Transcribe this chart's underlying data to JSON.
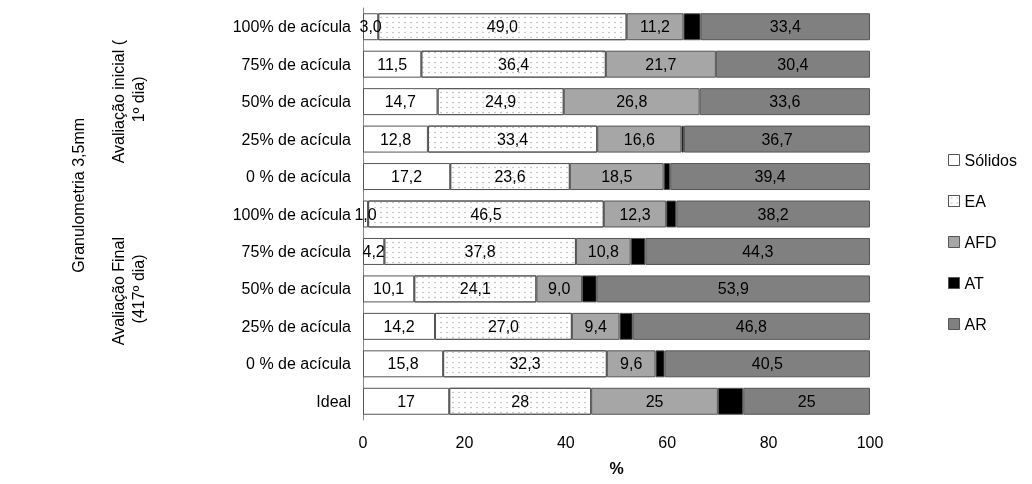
{
  "chart_data": {
    "type": "bar",
    "orientation": "horizontal",
    "stacked": true,
    "xlabel": "%",
    "categories": [
      "100% de acícula",
      "75% de acícula",
      "50% de acícula",
      "25% de acícula",
      "0 % de acícula",
      "100% de acícula",
      "75% de acícula",
      "50% de acícula",
      "25% de acícula",
      "0 % de acícula",
      "Ideal"
    ],
    "series": [
      {
        "name": "Sólidos",
        "color": "#ffffff",
        "values": [
          3.0,
          11.5,
          14.7,
          12.8,
          17.2,
          1.0,
          4.2,
          10.1,
          14.2,
          15.8,
          17
        ],
        "value_labels": [
          "3,0",
          "11,5",
          "14,7",
          "12,8",
          "17,2",
          "1,0",
          "4,2",
          "10,1",
          "14,2",
          "15,8",
          "17"
        ]
      },
      {
        "name": "EA",
        "color": "#ffffff",
        "values": [
          49.0,
          36.4,
          24.9,
          33.4,
          23.6,
          46.5,
          37.8,
          24.1,
          27.0,
          32.3,
          28
        ],
        "value_labels": [
          "49,0",
          "36,4",
          "24,9",
          "33,4",
          "23,6",
          "46,5",
          "37,8",
          "24,1",
          "27,0",
          "32,3",
          "28"
        ]
      },
      {
        "name": "AFD",
        "color": "#a6a6a6",
        "values": [
          11.2,
          21.7,
          26.8,
          16.6,
          18.5,
          12.3,
          10.8,
          9.0,
          9.4,
          9.6,
          25
        ],
        "value_labels": [
          "11,2",
          "21,7",
          "26,8",
          "16,6",
          "18,5",
          "12,3",
          "10,8",
          "9,0",
          "9,4",
          "9,6",
          "25"
        ]
      },
      {
        "name": "AT",
        "color": "#000000",
        "values": [
          3.4,
          0,
          0,
          0.5,
          1.3,
          2.0,
          2.9,
          2.9,
          2.6,
          1.8,
          5
        ]
      },
      {
        "name": "AR",
        "color": "#808080",
        "values": [
          33.4,
          30.4,
          33.6,
          36.7,
          39.4,
          38.2,
          44.3,
          53.9,
          46.8,
          40.5,
          25
        ],
        "value_labels": [
          "33,4",
          "30,4",
          "33,6",
          "36,7",
          "39,4",
          "38,2",
          "44,3",
          "53,9",
          "46,8",
          "40,5",
          "25"
        ]
      }
    ],
    "xlim": [
      0,
      100
    ],
    "xticks": [
      0,
      20,
      40,
      60,
      80,
      100
    ],
    "grid": false,
    "legend": "right",
    "annotations": [
      "Granulometria 3,5mm",
      "Avaliação inicial ( 1º dia)",
      "Avaliação Final (417º dia)"
    ]
  }
}
